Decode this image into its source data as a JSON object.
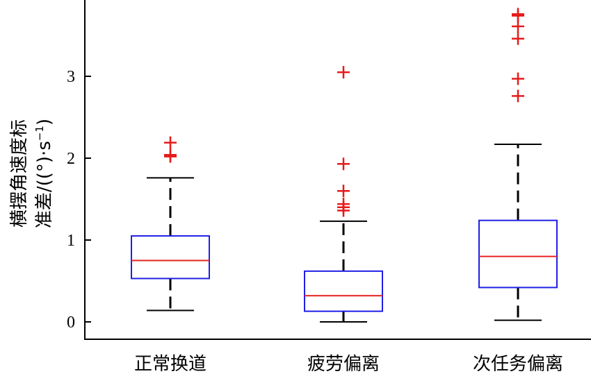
{
  "chart_data": {
    "type": "box",
    "ylabel": {
      "line1": "横摆角速度标",
      "line2_prefix": "准差/((°)·s",
      "line2_sup": "−1",
      "line2_suffix": ")"
    },
    "ylim": [
      -0.2,
      3.95
    ],
    "yticks": [
      {
        "value": 0,
        "label": "0"
      },
      {
        "value": 1,
        "label": "1"
      },
      {
        "value": 2,
        "label": "2"
      },
      {
        "value": 3,
        "label": "3"
      }
    ],
    "categories": [
      "正常换道",
      "疲劳偏离",
      "次任务偏离"
    ],
    "boxes": [
      {
        "whisker_low": 0.14,
        "q1": 0.53,
        "median": 0.75,
        "q3": 1.05,
        "whisker_high": 1.76,
        "outliers": [
          2.02,
          2.04,
          2.19
        ]
      },
      {
        "whisker_low": 0.0,
        "q1": 0.13,
        "median": 0.32,
        "q3": 0.62,
        "whisker_high": 1.23,
        "outliers": [
          1.36,
          1.4,
          1.44,
          1.6,
          1.93,
          3.05
        ]
      },
      {
        "whisker_low": 0.02,
        "q1": 0.42,
        "median": 0.8,
        "q3": 1.24,
        "whisker_high": 2.17,
        "outliers": [
          2.76,
          2.97,
          3.46,
          3.61,
          3.74,
          3.76
        ]
      }
    ],
    "colors": {
      "box": "#1f1fe6",
      "median": "#e62020",
      "outlier": "#e61a1a",
      "whisker": "#000000",
      "axis": "#000000"
    }
  }
}
